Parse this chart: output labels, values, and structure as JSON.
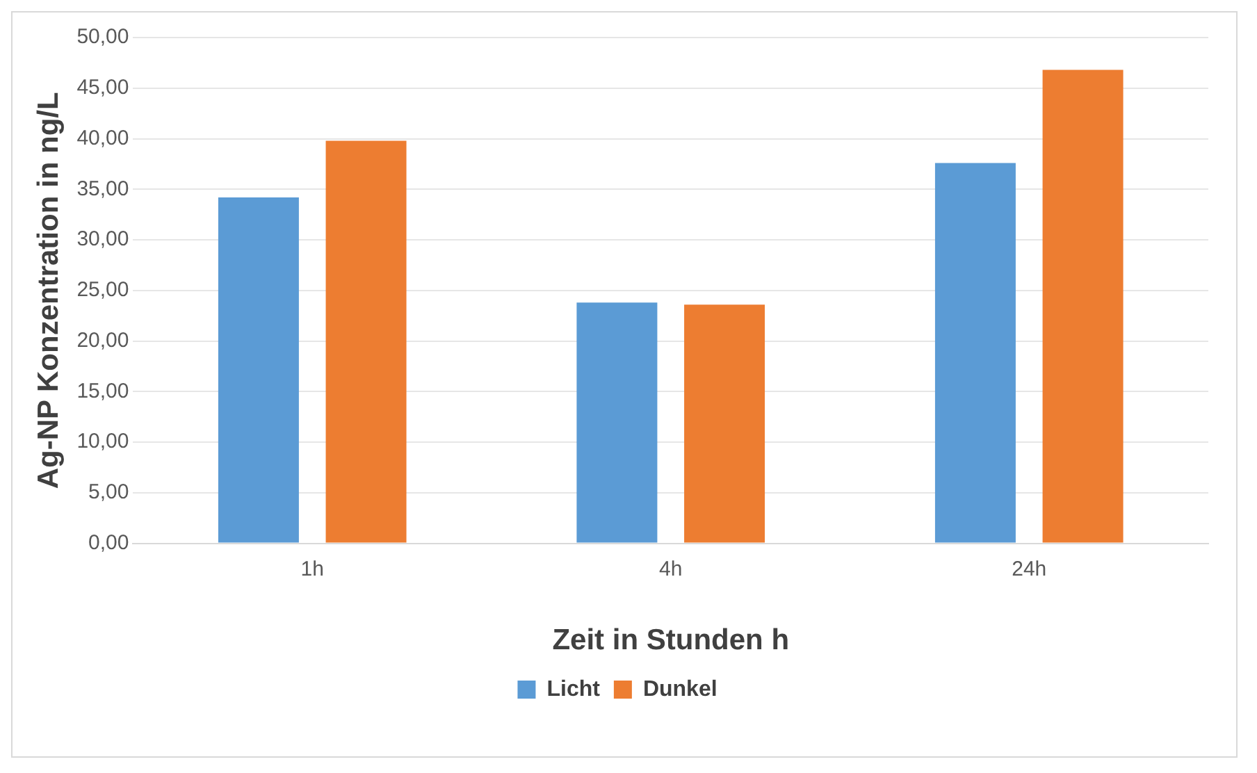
{
  "chart_data": {
    "type": "bar",
    "xlabel": "Zeit in Stunden h",
    "ylabel": "Ag-NP Konzentration in ng/L",
    "categories": [
      "1h",
      "4h",
      "24h"
    ],
    "series": [
      {
        "name": "Licht",
        "color": "#5b9bd5",
        "values": [
          34.2,
          23.8,
          37.6
        ]
      },
      {
        "name": "Dunkel",
        "color": "#ed7d31",
        "values": [
          39.8,
          23.6,
          46.8
        ]
      }
    ],
    "ylim": [
      0,
      50
    ],
    "yticks": [
      {
        "value": 0,
        "label": "0,00"
      },
      {
        "value": 5,
        "label": "5,00"
      },
      {
        "value": 10,
        "label": "10,00"
      },
      {
        "value": 15,
        "label": "15,00"
      },
      {
        "value": 20,
        "label": "20,00"
      },
      {
        "value": 25,
        "label": "25,00"
      },
      {
        "value": 30,
        "label": "30,00"
      },
      {
        "value": 35,
        "label": "35,00"
      },
      {
        "value": 40,
        "label": "40,00"
      },
      {
        "value": 45,
        "label": "45,00"
      },
      {
        "value": 50,
        "label": "50,00"
      }
    ],
    "grid": "y",
    "legend": "bottom"
  }
}
